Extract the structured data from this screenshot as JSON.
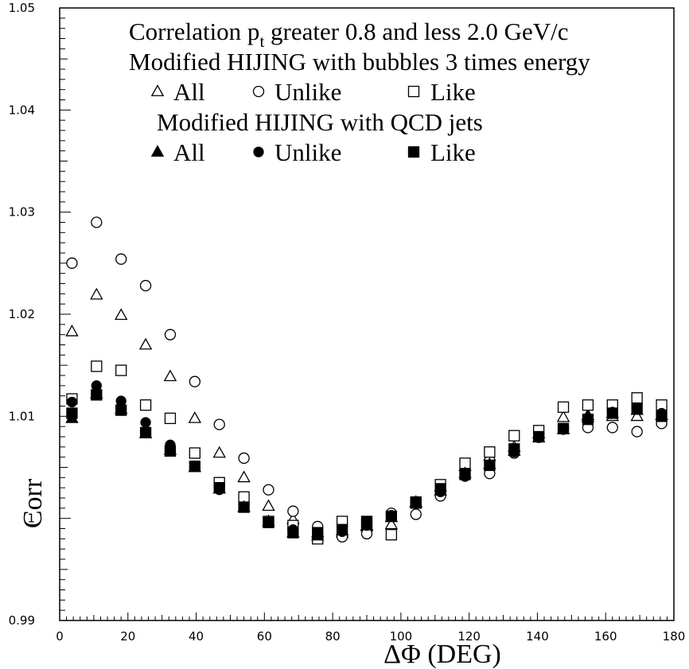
{
  "chart_data": {
    "type": "scatter",
    "title_lines": [
      "Correlation p_t greater 0.8 and less 2.0 GeV/c",
      "Modified HIJING with bubbles 3 times energy",
      "Modified HIJING with QCD jets"
    ],
    "title_main": {
      "prefix": "Correlation p",
      "subscript": "t",
      "suffix": " greater 0.8 and less 2.0 GeV/c"
    },
    "group_labels": [
      "Modified HIJING with bubbles 3 times energy",
      "Modified HIJING with QCD jets"
    ],
    "legend_names": [
      "All",
      "Unlike",
      "Like"
    ],
    "xlabel": "ΔΦ (DEG)",
    "ylabel": "Corr",
    "xlim": [
      0,
      180
    ],
    "ylim": [
      0.99,
      1.05
    ],
    "x_ticks": [
      0,
      20,
      40,
      60,
      80,
      100,
      120,
      140,
      160,
      180
    ],
    "x_tick_labels": [
      "0",
      "20",
      "40",
      "60",
      "80",
      "100",
      "120",
      "140",
      "160",
      "180"
    ],
    "y_ticks": [
      0.99,
      1.0,
      1.01,
      1.02,
      1.03,
      1.04,
      1.05
    ],
    "y_tick_labels": [
      "0.99",
      "1",
      "1.01",
      "1.02",
      "1.03",
      "1.04",
      "1.05"
    ],
    "grid": false,
    "legend_position": "top-right",
    "x": [
      3.6,
      10.8,
      18.0,
      25.2,
      32.4,
      39.6,
      46.8,
      54.0,
      61.2,
      68.4,
      75.6,
      82.8,
      90.0,
      97.2,
      104.4,
      111.6,
      118.8,
      126.0,
      133.2,
      140.4,
      147.6,
      154.8,
      162.0,
      169.2,
      176.4
    ],
    "series": [
      {
        "name": "All",
        "group": "bubbles",
        "marker": "triangle-open",
        "values": [
          1.0183,
          1.0219,
          1.0199,
          1.017,
          1.0139,
          1.0098,
          1.0064,
          1.004,
          1.0012,
          0.9999,
          0.9986,
          0.9986,
          0.9992,
          0.9994,
          1.0016,
          1.0031,
          1.0051,
          1.0061,
          1.007,
          1.0083,
          1.0099,
          1.0101,
          1.01,
          1.01,
          1.0101
        ]
      },
      {
        "name": "Unlike",
        "group": "bubbles",
        "marker": "circle-open",
        "values": [
          1.025,
          1.029,
          1.0254,
          1.0228,
          1.018,
          1.0134,
          1.0092,
          1.0059,
          1.0028,
          1.0007,
          0.9992,
          0.9982,
          0.9985,
          1.0005,
          1.0004,
          1.0022,
          1.0042,
          1.0044,
          1.0064,
          1.0083,
          1.0088,
          1.0089,
          1.0089,
          1.0085,
          1.0093
        ]
      },
      {
        "name": "Like",
        "group": "bubbles",
        "marker": "square-open",
        "values": [
          1.0117,
          1.0149,
          1.0145,
          1.0111,
          1.0098,
          1.0064,
          1.0035,
          1.0021,
          0.9997,
          0.9993,
          0.998,
          0.9997,
          0.9994,
          0.9984,
          1.0015,
          1.0033,
          1.0054,
          1.0065,
          1.0081,
          1.0086,
          1.0109,
          1.0111,
          1.0111,
          1.0118,
          1.0111
        ]
      },
      {
        "name": "All",
        "group": "qcd",
        "marker": "triangle-filled",
        "values": [
          1.0098,
          1.0122,
          1.0107,
          1.0083,
          1.0067,
          1.005,
          1.0029,
          1.0011,
          0.9997,
          0.9986,
          0.9983,
          0.9988,
          0.9993,
          1.0001,
          1.0015,
          1.0027,
          1.0044,
          1.0053,
          1.0066,
          1.0079,
          1.0087,
          1.0099,
          1.0103,
          1.0106,
          1.0101
        ]
      },
      {
        "name": "Unlike",
        "group": "qcd",
        "marker": "circle-filled",
        "values": [
          1.0114,
          1.013,
          1.0115,
          1.0094,
          1.0072,
          1.0051,
          1.0028,
          1.0011,
          0.9996,
          0.9989,
          0.9984,
          0.9987,
          0.9993,
          1.0003,
          1.0015,
          1.0026,
          1.0041,
          1.0052,
          1.0065,
          1.0079,
          1.0087,
          1.0097,
          1.0104,
          1.0108,
          1.0103
        ]
      },
      {
        "name": "Like",
        "group": "qcd",
        "marker": "square-filled",
        "values": [
          1.0103,
          1.0121,
          1.0106,
          1.0084,
          1.0066,
          1.0051,
          1.003,
          1.0011,
          0.9996,
          0.9986,
          0.9986,
          0.9989,
          0.9997,
          1.0002,
          1.0016,
          1.0029,
          1.0043,
          1.0052,
          1.0068,
          1.008,
          1.0088,
          1.0097,
          1.0103,
          1.0108,
          1.01
        ]
      }
    ]
  }
}
